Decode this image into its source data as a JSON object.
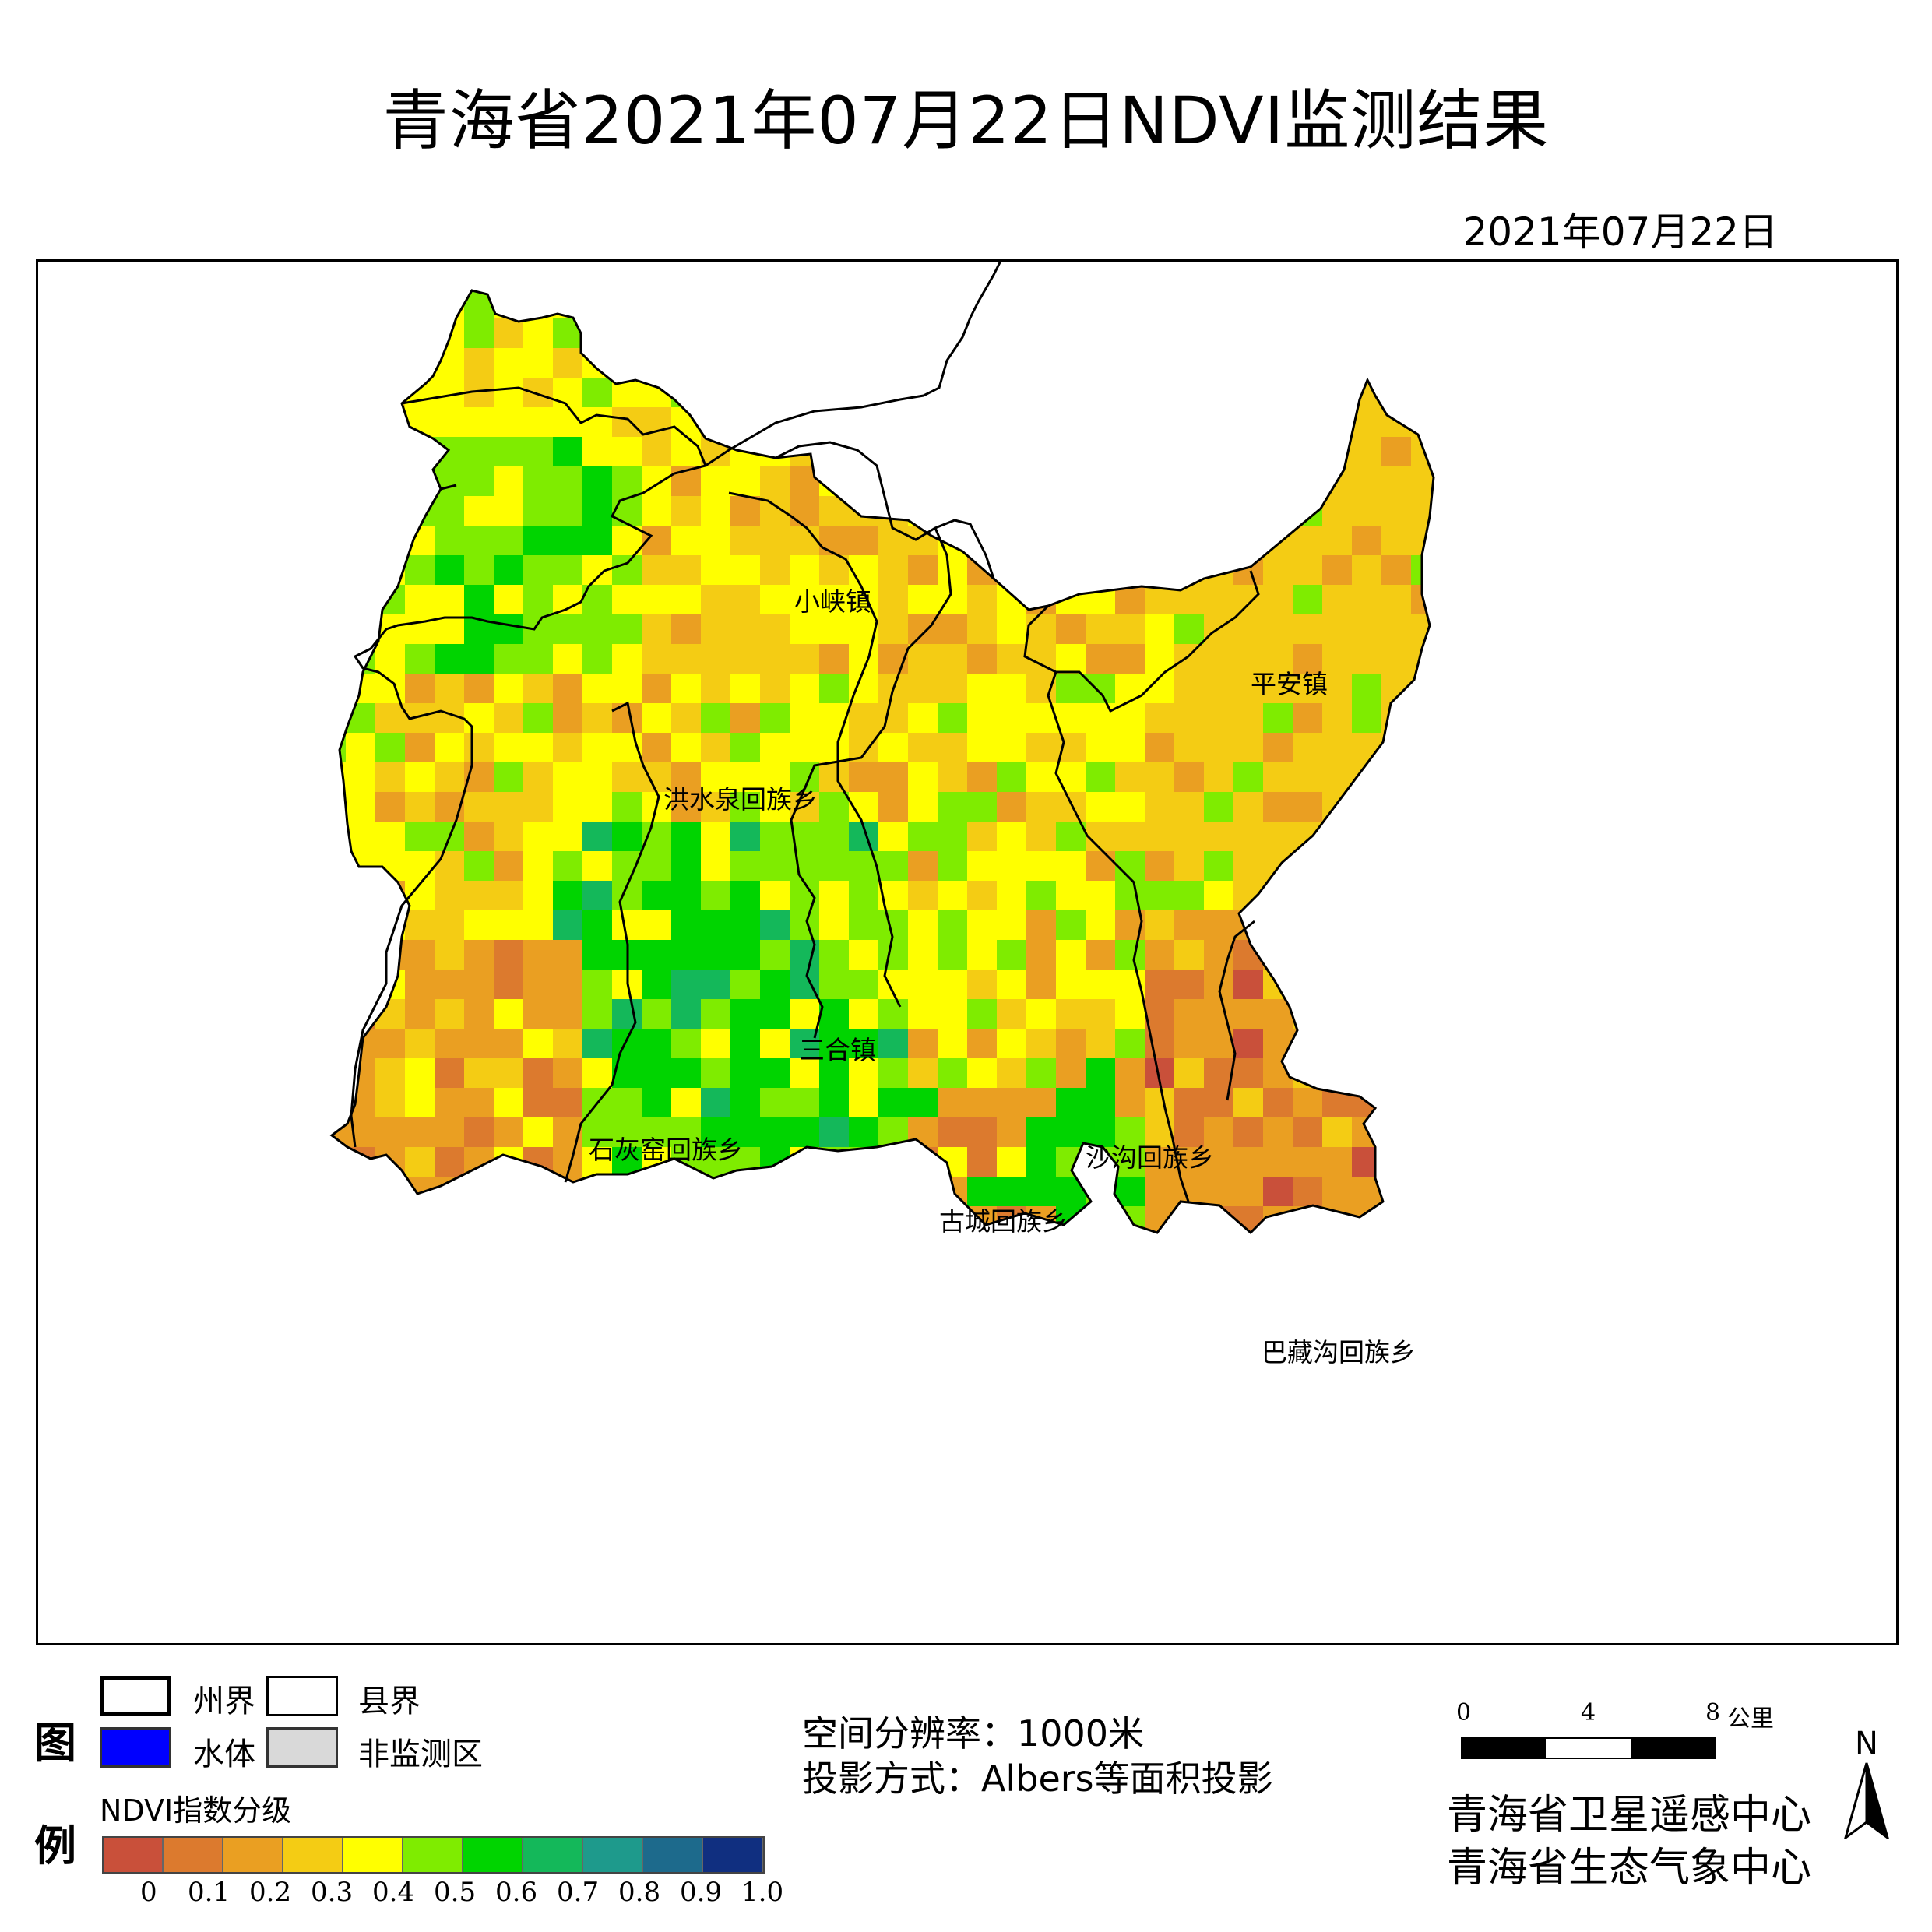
{
  "title": "青海省2021年07月22日NDVI监测结果",
  "date": "2021年07月22日",
  "towns": [
    {
      "name": "小峡镇"
    },
    {
      "name": "平安镇"
    },
    {
      "name": "洪水泉回族乡"
    },
    {
      "name": "三合镇"
    },
    {
      "name": "石灰窑回族乡"
    },
    {
      "name": "沙沟回族乡"
    },
    {
      "name": "古城回族乡"
    },
    {
      "name": "巴藏沟回族乡"
    }
  ],
  "legend": {
    "heading_top": "图",
    "heading_bottom": "例",
    "prefecture_boundary": "州界",
    "county_boundary": "县界",
    "water": "水体",
    "non_monitored": "非监测区",
    "ndvi_title": "NDVI指数分级",
    "ramp_colors": [
      "#c9503a",
      "#dc7a2e",
      "#ea9f22",
      "#f4cc14",
      "#ffff00",
      "#7fec00",
      "#00d400",
      "#14b85a",
      "#1e9a8c",
      "#1d6a8c",
      "#102f80"
    ],
    "ramp_labels": [
      "0",
      "0.1",
      "0.2",
      "0.3",
      "0.4",
      "0.5",
      "0.6",
      "0.7",
      "0.8",
      "0.9",
      "1.0"
    ],
    "water_color": "#0000ff",
    "non_monitored_color": "#d9d9d9"
  },
  "info": {
    "resolution": "空间分辨率：1000米",
    "projection": "投影方式：Albers等面积投影"
  },
  "scale": {
    "labels": [
      "0",
      "4",
      "8"
    ],
    "unit": "公里"
  },
  "north": "N",
  "agencies": [
    "青海省卫星遥感中心",
    "青海省生态气象中心"
  ]
}
